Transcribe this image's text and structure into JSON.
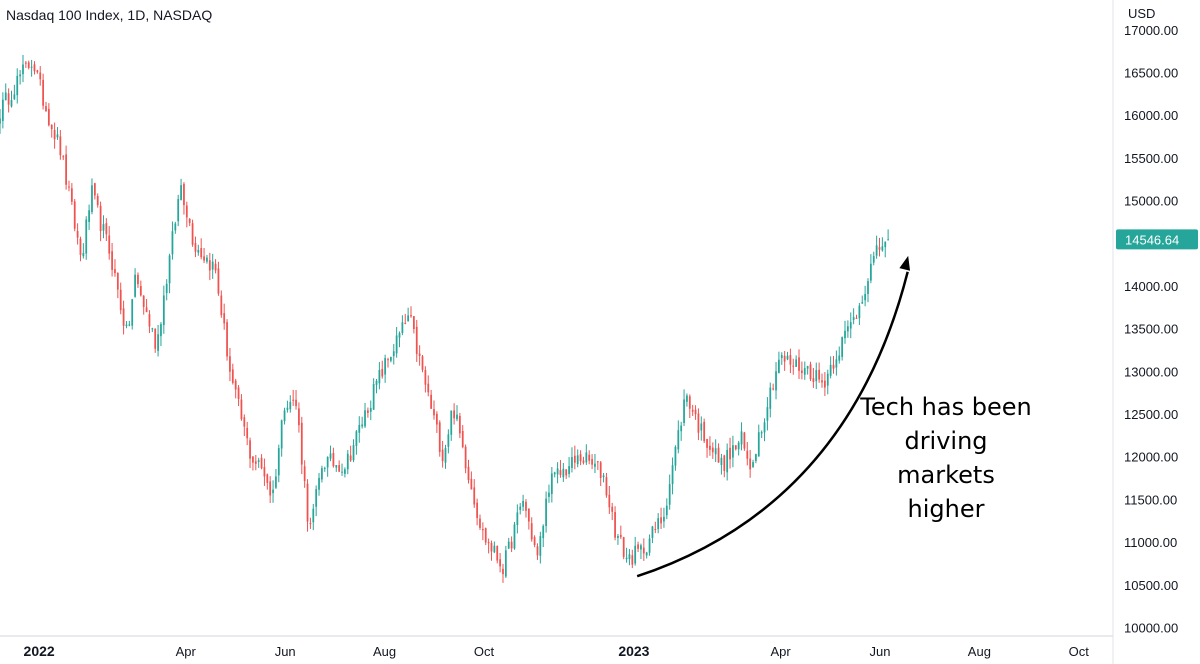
{
  "chart_data": {
    "type": "candlestick",
    "title": "Nasdaq 100 Index, 1D, NASDAQ",
    "currency": "USD",
    "ylim": [
      9900,
      17350
    ],
    "y_ticks": [
      "17000.00",
      "16500.00",
      "16000.00",
      "15500.00",
      "15000.00",
      "14000.00",
      "13500.00",
      "13000.00",
      "12500.00",
      "12000.00",
      "11500.00",
      "11000.00",
      "10500.00",
      "10000.00"
    ],
    "y_tick_values": [
      17000,
      16500,
      16000,
      15500,
      15000,
      14000,
      13500,
      13000,
      12500,
      12000,
      11500,
      11000,
      10500,
      10000
    ],
    "x_ticks": [
      {
        "label": "2022",
        "date": "2022-01-01",
        "bold": true
      },
      {
        "label": "Apr",
        "date": "2022-04-01",
        "bold": false
      },
      {
        "label": "Jun",
        "date": "2022-06-01",
        "bold": false
      },
      {
        "label": "Aug",
        "date": "2022-08-01",
        "bold": false
      },
      {
        "label": "Oct",
        "date": "2022-10-01",
        "bold": false
      },
      {
        "label": "2023",
        "date": "2023-01-01",
        "bold": true
      },
      {
        "label": "Apr",
        "date": "2023-04-01",
        "bold": false
      },
      {
        "label": "Jun",
        "date": "2023-06-01",
        "bold": false
      },
      {
        "label": "Aug",
        "date": "2023-08-01",
        "bold": false
      },
      {
        "label": "Oct",
        "date": "2023-10-01",
        "bold": false
      }
    ],
    "x_range": [
      "2021-12-08",
      "2023-10-22"
    ],
    "last_price": "14546.64",
    "last_price_value": 14546.64,
    "up_color": "#26a69a",
    "down_color": "#ef5350",
    "path_points": [
      [
        "2021-12-08",
        16050
      ],
      [
        "2021-12-20",
        16450
      ],
      [
        "2021-12-28",
        16650
      ],
      [
        "2022-01-04",
        16150
      ],
      [
        "2022-01-14",
        15600
      ],
      [
        "2022-01-27",
        14300
      ],
      [
        "2022-02-02",
        15100
      ],
      [
        "2022-02-14",
        14350
      ],
      [
        "2022-02-24",
        13400
      ],
      [
        "2022-03-01",
        14100
      ],
      [
        "2022-03-14",
        13300
      ],
      [
        "2022-03-29",
        15200
      ],
      [
        "2022-04-06",
        14500
      ],
      [
        "2022-04-19",
        14200
      ],
      [
        "2022-04-29",
        12900
      ],
      [
        "2022-05-11",
        12000
      ],
      [
        "2022-05-20",
        11800
      ],
      [
        "2022-05-24",
        11500
      ],
      [
        "2022-06-01",
        12700
      ],
      [
        "2022-06-08",
        12600
      ],
      [
        "2022-06-16",
        11100
      ],
      [
        "2022-06-24",
        11950
      ],
      [
        "2022-07-08",
        11900
      ],
      [
        "2022-07-28",
        12900
      ],
      [
        "2022-08-16",
        13650
      ],
      [
        "2022-08-24",
        13000
      ],
      [
        "2022-09-06",
        12000
      ],
      [
        "2022-09-12",
        12600
      ],
      [
        "2022-09-30",
        11100
      ],
      [
        "2022-10-13",
        10700
      ],
      [
        "2022-10-25",
        11500
      ],
      [
        "2022-11-03",
        10800
      ],
      [
        "2022-11-10",
        11700
      ],
      [
        "2022-11-30",
        12000
      ],
      [
        "2022-12-13",
        11800
      ],
      [
        "2022-12-21",
        11100
      ],
      [
        "2022-12-28",
        10800
      ],
      [
        "2023-01-06",
        10900
      ],
      [
        "2023-01-19",
        11300
      ],
      [
        "2023-02-02",
        12750
      ],
      [
        "2023-02-10",
        12350
      ],
      [
        "2023-02-24",
        11900
      ],
      [
        "2023-03-08",
        12200
      ],
      [
        "2023-03-13",
        11850
      ],
      [
        "2023-03-31",
        13150
      ],
      [
        "2023-04-20",
        13000
      ],
      [
        "2023-04-27",
        12850
      ],
      [
        "2023-05-05",
        13200
      ],
      [
        "2023-05-18",
        13700
      ],
      [
        "2023-05-26",
        14200
      ],
      [
        "2023-06-02",
        14500
      ],
      [
        "2023-06-06",
        14546.64
      ]
    ],
    "candle_count": 310,
    "arrow": {
      "from": [
        "2023-01-03",
        10600
      ],
      "to": [
        "2023-06-18",
        14330
      ]
    },
    "annotation_lines": [
      "Tech has been",
      "driving markets",
      "higher"
    ],
    "grid": false
  }
}
